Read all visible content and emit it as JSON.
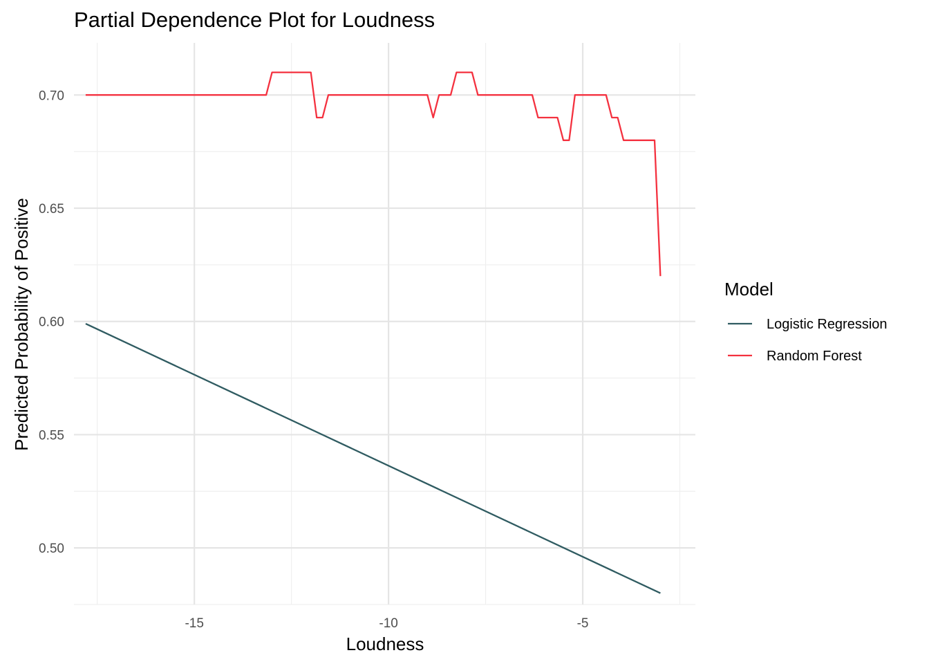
{
  "chart_data": {
    "type": "line",
    "title": "Partial Dependence Plot for Loudness",
    "xlabel": "Loudness",
    "ylabel": "Predicted Probability of Positive",
    "xlim": [
      -18.1,
      -2.1
    ],
    "ylim": [
      0.475,
      0.723
    ],
    "x_ticks": [
      -15,
      -10,
      -5
    ],
    "x_tick_labels": [
      "-15",
      "-10",
      "-5"
    ],
    "y_ticks": [
      0.5,
      0.55,
      0.6,
      0.65,
      0.7
    ],
    "y_tick_labels": [
      "0.50",
      "0.55",
      "0.60",
      "0.65",
      "0.70"
    ],
    "grid": true,
    "legend": {
      "title": "Model",
      "position": "right"
    },
    "series": [
      {
        "name": "Logistic Regression",
        "color": "#2f5b61",
        "x": [
          -17.8,
          -3.0
        ],
        "y": [
          0.599,
          0.48
        ]
      },
      {
        "name": "Random Forest",
        "color": "#f4313f",
        "x": [
          -17.8,
          -13.15,
          -13.0,
          -12.0,
          -11.85,
          -11.7,
          -11.55,
          -9.0,
          -8.85,
          -8.7,
          -8.4,
          -8.25,
          -7.85,
          -7.7,
          -6.3,
          -6.15,
          -5.65,
          -5.5,
          -5.35,
          -5.2,
          -4.4,
          -4.25,
          -4.1,
          -3.95,
          -3.15,
          -3.0
        ],
        "y": [
          0.7,
          0.7,
          0.71,
          0.71,
          0.69,
          0.69,
          0.7,
          0.7,
          0.69,
          0.7,
          0.7,
          0.71,
          0.71,
          0.7,
          0.7,
          0.69,
          0.69,
          0.68,
          0.68,
          0.7,
          0.7,
          0.69,
          0.69,
          0.68,
          0.68,
          0.62
        ]
      }
    ]
  }
}
